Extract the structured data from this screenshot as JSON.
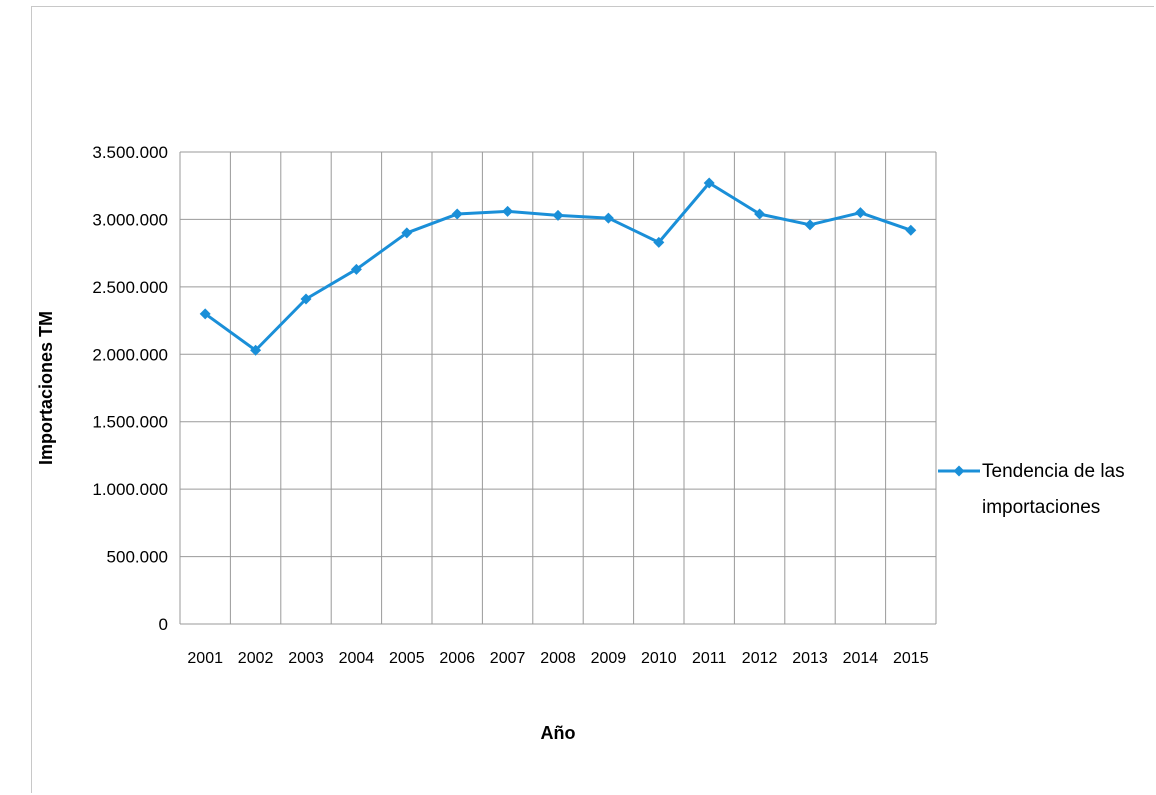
{
  "chart_data": {
    "type": "line",
    "title": "",
    "xlabel": "Año",
    "ylabel": "Importaciones TM",
    "ylim": [
      0,
      3500000
    ],
    "y_ticks": [
      "0",
      "500.000",
      "1.000.000",
      "1.500.000",
      "2.000.000",
      "2.500.000",
      "3.000.000",
      "3.500.000"
    ],
    "y_tick_values": [
      0,
      500000,
      1000000,
      1500000,
      2000000,
      2500000,
      3000000,
      3500000
    ],
    "categories": [
      "2001",
      "2002",
      "2003",
      "2004",
      "2005",
      "2006",
      "2007",
      "2008",
      "2009",
      "2010",
      "2011",
      "2012",
      "2013",
      "2014",
      "2015"
    ],
    "series": [
      {
        "name": "Tendencia de las importaciones",
        "values": [
          2300000,
          2030000,
          2410000,
          2630000,
          2900000,
          3040000,
          3060000,
          3030000,
          3010000,
          2830000,
          3270000,
          3040000,
          2960000,
          3050000,
          2920000
        ],
        "color": "#1a8fd8"
      }
    ],
    "legend": {
      "position": "right",
      "lines": [
        "Tendencia de las",
        "importaciones"
      ]
    },
    "grid": true,
    "grid_color": "#9a9a9a"
  }
}
